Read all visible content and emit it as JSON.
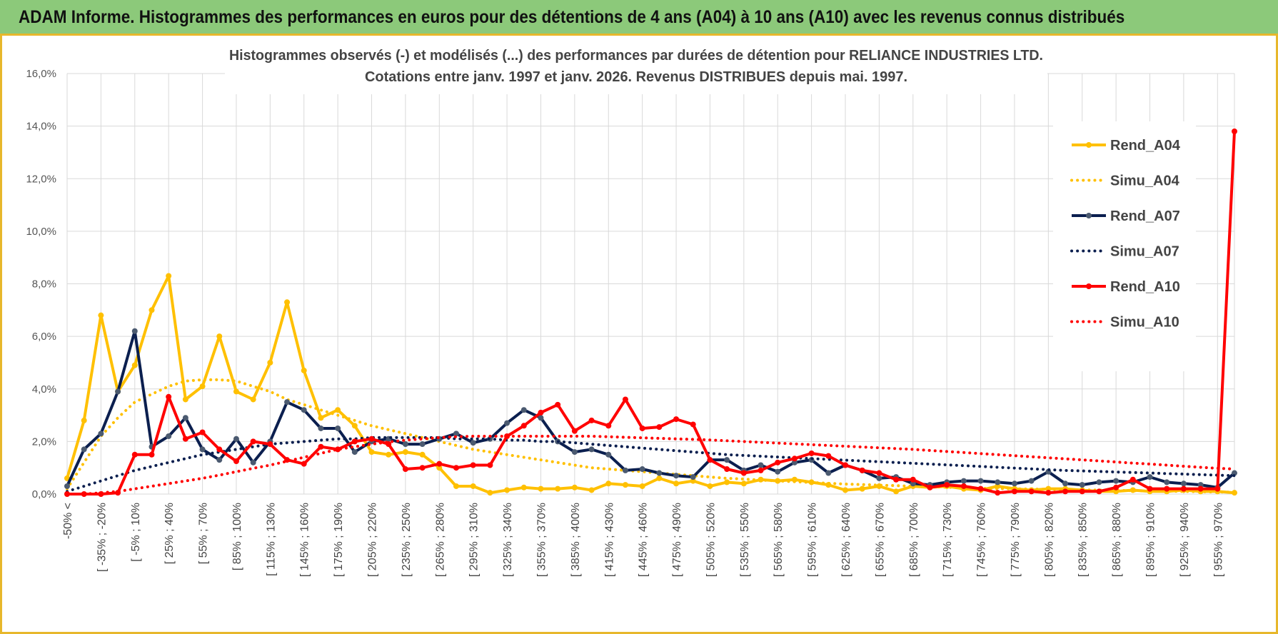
{
  "header": {
    "title": "ADAM Informe. Histogrammes des performances en euros pour des détentions de 4 ans (A04) à 10 ans (A10) avec les revenus connus distribués"
  },
  "chart_data": {
    "type": "line",
    "title_line1": "Histogrammes observés (-) et modélisés (...) des performances par durées de détention pour RELIANCE INDUSTRIES LTD.",
    "title_line2": "Cotations entre janv. 1997 et janv. 2026. Revenus DISTRIBUES depuis mai. 1997.",
    "ylim": [
      0,
      16
    ],
    "yticks": [
      "0,0%",
      "2,0%",
      "4,0%",
      "6,0%",
      "8,0%",
      "10,0%",
      "12,0%",
      "14,0%",
      "16,0%"
    ],
    "tick_labels": [
      "-50% <",
      "[ -35% ; -20%",
      "[ -5% ; 10%",
      "[ 25% ; 40%",
      "[ 55% ; 70%",
      "[ 85% ; 100%",
      "[ 115% ; 130%",
      "[ 145% ; 160%",
      "[ 175% ; 190%",
      "[ 205% ; 220%",
      "[ 235% ; 250%",
      "[ 265% ; 280%",
      "[ 295% ; 310%",
      "[ 325% ; 340%",
      "[ 355% ; 370%",
      "[ 385% ; 400%",
      "[ 415% ; 430%",
      "[ 445% ; 460%",
      "[ 475% ; 490%",
      "[ 505% ; 520%",
      "[ 535% ; 550%",
      "[ 565% ; 580%",
      "[ 595% ; 610%",
      "[ 625% ; 640%",
      "[ 655% ; 670%",
      "[ 685% ; 700%",
      "[ 715% ; 730%",
      "[ 745% ; 760%",
      "[ 775% ; 790%",
      "[ 805% ; 820%",
      "[ 835% ; 850%",
      "[ 865% ; 880%",
      "[ 895% ; 910%",
      "[ 925% ; 940%",
      "[ 955% ; 970%"
    ],
    "n_points": 70,
    "legend_position": "right",
    "grid": true,
    "series": [
      {
        "name": "Rend_A04",
        "style": "solid",
        "color": "#ffc000",
        "values": [
          0.6,
          2.8,
          6.8,
          3.9,
          4.9,
          7.0,
          8.3,
          3.6,
          4.1,
          6.0,
          3.9,
          3.6,
          5.0,
          7.3,
          4.7,
          2.9,
          3.2,
          2.6,
          1.6,
          1.5,
          1.6,
          1.5,
          1.0,
          0.3,
          0.3,
          0.05,
          0.15,
          0.25,
          0.2,
          0.2,
          0.25,
          0.15,
          0.4,
          0.35,
          0.3,
          0.6,
          0.4,
          0.5,
          0.3,
          0.45,
          0.4,
          0.55,
          0.5,
          0.55,
          0.45,
          0.35,
          0.15,
          0.2,
          0.3,
          0.1,
          0.3,
          0.25,
          0.3,
          0.2,
          0.15,
          0.3,
          0.2,
          0.15,
          0.2,
          0.2,
          0.15,
          0.1,
          0.1,
          0.15,
          0.1,
          0.1,
          0.15,
          0.1,
          0.1,
          0.05
        ]
      },
      {
        "name": "Simu_A04",
        "style": "dotted",
        "color": "#ffc000",
        "values": [
          0.2,
          1.2,
          2.2,
          2.9,
          3.5,
          3.8,
          4.1,
          4.3,
          4.35,
          4.35,
          4.3,
          4.1,
          3.9,
          3.6,
          3.4,
          3.2,
          3.0,
          2.8,
          2.6,
          2.45,
          2.3,
          2.15,
          2.0,
          1.85,
          1.7,
          1.6,
          1.5,
          1.4,
          1.3,
          1.2,
          1.1,
          1.0,
          0.95,
          0.9,
          0.85,
          0.8,
          0.75,
          0.7,
          0.65,
          0.6,
          0.57,
          0.53,
          0.5,
          0.47,
          0.44,
          0.41,
          0.38,
          0.36,
          0.34,
          0.32,
          0.3,
          0.28,
          0.26,
          0.24,
          0.22,
          0.21,
          0.2,
          0.19,
          0.18,
          0.17,
          0.16,
          0.15,
          0.14,
          0.13,
          0.12,
          0.11,
          0.1,
          0.09,
          0.08,
          0.07
        ]
      },
      {
        "name": "Rend_A07",
        "style": "solid",
        "color": "#0b1f4f",
        "values": [
          0.3,
          1.7,
          2.3,
          3.9,
          6.2,
          1.8,
          2.2,
          2.9,
          1.7,
          1.3,
          2.1,
          1.2,
          2.0,
          3.5,
          3.2,
          2.5,
          2.5,
          1.6,
          2.0,
          2.1,
          1.9,
          1.9,
          2.1,
          2.3,
          1.95,
          2.1,
          2.7,
          3.2,
          2.9,
          2.0,
          1.6,
          1.7,
          1.5,
          0.9,
          0.95,
          0.8,
          0.7,
          0.65,
          1.3,
          1.3,
          0.9,
          1.1,
          0.85,
          1.2,
          1.3,
          0.8,
          1.1,
          0.9,
          0.6,
          0.65,
          0.4,
          0.35,
          0.45,
          0.5,
          0.5,
          0.45,
          0.4,
          0.5,
          0.85,
          0.4,
          0.35,
          0.45,
          0.5,
          0.45,
          0.65,
          0.45,
          0.4,
          0.35,
          0.25,
          0.8
        ]
      },
      {
        "name": "Simu_A07",
        "style": "dotted",
        "color": "#0b1f4f",
        "values": [
          0.1,
          0.3,
          0.5,
          0.7,
          0.9,
          1.05,
          1.2,
          1.35,
          1.5,
          1.6,
          1.7,
          1.8,
          1.9,
          1.95,
          2.0,
          2.05,
          2.1,
          2.1,
          2.15,
          2.15,
          2.15,
          2.15,
          2.15,
          2.1,
          2.1,
          2.1,
          2.05,
          2.05,
          2.0,
          2.0,
          1.95,
          1.9,
          1.85,
          1.8,
          1.75,
          1.7,
          1.65,
          1.6,
          1.55,
          1.5,
          1.47,
          1.44,
          1.41,
          1.38,
          1.35,
          1.32,
          1.29,
          1.26,
          1.23,
          1.2,
          1.17,
          1.14,
          1.11,
          1.08,
          1.05,
          1.02,
          0.99,
          0.96,
          0.93,
          0.9,
          0.88,
          0.86,
          0.84,
          0.82,
          0.8,
          0.78,
          0.76,
          0.74,
          0.72,
          0.7
        ]
      },
      {
        "name": "Rend_A10",
        "style": "solid",
        "color": "#ff0000",
        "values": [
          0.0,
          0.0,
          0.0,
          0.05,
          1.5,
          1.5,
          3.7,
          2.1,
          2.35,
          1.7,
          1.25,
          2.0,
          1.9,
          1.3,
          1.15,
          1.8,
          1.7,
          2.0,
          2.1,
          1.9,
          0.95,
          1.0,
          1.15,
          1.0,
          1.1,
          1.1,
          2.2,
          2.6,
          3.1,
          3.4,
          2.4,
          2.8,
          2.6,
          3.6,
          2.5,
          2.55,
          2.85,
          2.65,
          1.3,
          0.95,
          0.8,
          0.9,
          1.2,
          1.35,
          1.55,
          1.45,
          1.1,
          0.9,
          0.8,
          0.55,
          0.55,
          0.25,
          0.35,
          0.3,
          0.2,
          0.05,
          0.1,
          0.1,
          0.05,
          0.1,
          0.1,
          0.1,
          0.25,
          0.55,
          0.2,
          0.2,
          0.2,
          0.2,
          0.2,
          13.8
        ]
      },
      {
        "name": "Simu_A10",
        "style": "dotted",
        "color": "#ff0000",
        "values": [
          0.0,
          0.0,
          0.05,
          0.1,
          0.2,
          0.3,
          0.4,
          0.5,
          0.6,
          0.72,
          0.85,
          0.98,
          1.1,
          1.25,
          1.4,
          1.55,
          1.7,
          1.8,
          1.9,
          1.98,
          2.05,
          2.1,
          2.15,
          2.18,
          2.2,
          2.2,
          2.2,
          2.2,
          2.2,
          2.2,
          2.2,
          2.2,
          2.18,
          2.16,
          2.14,
          2.12,
          2.1,
          2.08,
          2.06,
          2.03,
          2.0,
          1.97,
          1.94,
          1.91,
          1.88,
          1.85,
          1.82,
          1.79,
          1.76,
          1.73,
          1.7,
          1.66,
          1.62,
          1.58,
          1.54,
          1.5,
          1.46,
          1.42,
          1.38,
          1.34,
          1.3,
          1.26,
          1.22,
          1.18,
          1.14,
          1.1,
          1.06,
          1.02,
          0.98,
          0.95
        ]
      }
    ]
  }
}
